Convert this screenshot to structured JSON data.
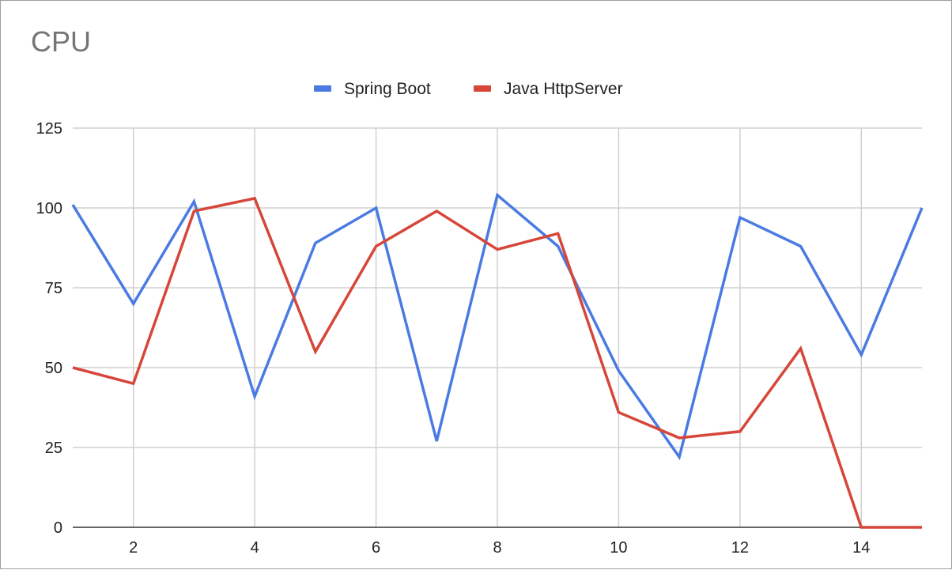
{
  "chart_data": {
    "type": "line",
    "title": "CPU",
    "xlabel": "",
    "ylabel": "",
    "x": [
      1,
      2,
      3,
      4,
      5,
      6,
      7,
      8,
      9,
      10,
      11,
      12,
      13,
      14,
      15
    ],
    "xlim": [
      1,
      15
    ],
    "ylim": [
      0,
      125
    ],
    "x_ticks": [
      2,
      4,
      6,
      8,
      10,
      12,
      14
    ],
    "y_ticks": [
      0,
      25,
      50,
      75,
      100,
      125
    ],
    "grid": true,
    "legend_position": "top",
    "series": [
      {
        "name": "Spring Boot",
        "color": "#4a7be3",
        "values": [
          101,
          70,
          102,
          41,
          89,
          100,
          27,
          104,
          88,
          49,
          22,
          97,
          88,
          54,
          100
        ]
      },
      {
        "name": "Java HttpServer",
        "color": "#d6473a",
        "values": [
          50,
          45,
          99,
          103,
          55,
          88,
          99,
          87,
          92,
          36,
          28,
          30,
          56,
          0,
          0
        ]
      }
    ]
  }
}
